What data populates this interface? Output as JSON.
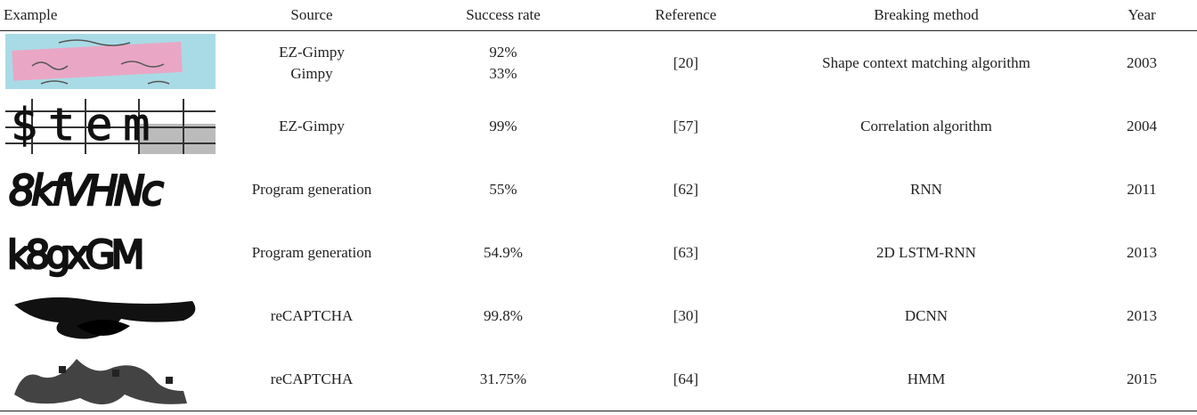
{
  "table": {
    "header": [
      "Example",
      "Source",
      "Success rate",
      "Reference",
      "Breaking method",
      "Year"
    ],
    "rows": [
      {
        "source": [
          "EZ-Gimpy",
          "Gimpy"
        ],
        "success": [
          "92%",
          "33%"
        ],
        "reference": "[20]",
        "method": "Shape context matching algorithm",
        "year": "2003"
      },
      {
        "example_text": "$tem",
        "source": [
          "EZ-Gimpy"
        ],
        "success": [
          "99%"
        ],
        "reference": "[57]",
        "method": "Correlation algorithm",
        "year": "2004"
      },
      {
        "example_text": "8kfVHNc",
        "source": [
          "Program generation"
        ],
        "success": [
          "55%"
        ],
        "reference": "[62]",
        "method": "RNN",
        "year": "2011"
      },
      {
        "example_text": "k8gxGM",
        "source": [
          "Program generation"
        ],
        "success": [
          "54.9%"
        ],
        "reference": "[63]",
        "method": "2D LSTM-RNN",
        "year": "2013"
      },
      {
        "source": [
          "reCAPTCHA"
        ],
        "success": [
          "99.8%"
        ],
        "reference": "[30]",
        "method": "DCNN",
        "year": "2013"
      },
      {
        "source": [
          "reCAPTCHA"
        ],
        "success": [
          "31.75%"
        ],
        "reference": "[64]",
        "method": "HMM",
        "year": "2015"
      }
    ]
  }
}
